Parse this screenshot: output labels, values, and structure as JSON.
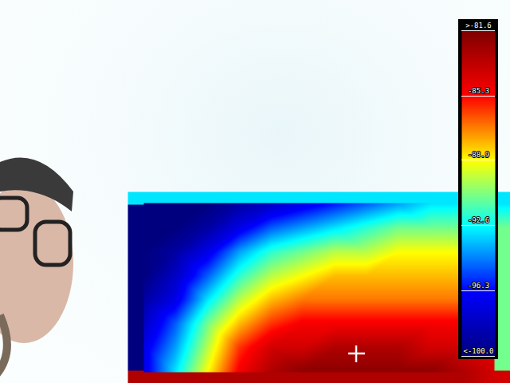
{
  "chart_data": {
    "type": "heatmap",
    "tick_labels": false,
    "cells": [
      [
        -100,
        -100,
        -100,
        -99,
        -98,
        -97,
        -96,
        -95,
        -94,
        -93,
        -93,
        -93
      ],
      [
        -100,
        -100,
        -99,
        -97,
        -95,
        -94,
        -93,
        -92,
        -91,
        -91,
        -91,
        -91
      ],
      [
        -100,
        -99,
        -97,
        -94,
        -92,
        -91,
        -90,
        -90,
        -89,
        -89,
        -89,
        -89
      ],
      [
        -100,
        -98,
        -95,
        -92,
        -90,
        -89,
        -88,
        -88,
        -88,
        -88,
        -88,
        -88
      ],
      [
        -99,
        -97,
        -93,
        -90,
        -88,
        -87,
        -87,
        -87,
        -87,
        -87,
        -87,
        -87
      ],
      [
        -98,
        -95,
        -91,
        -88,
        -86,
        -85,
        -85,
        -85,
        -85,
        -85,
        -85,
        -86
      ],
      [
        -97,
        -94,
        -90,
        -86,
        -84,
        -84,
        -83,
        -83,
        -83,
        -84,
        -84,
        -85
      ],
      [
        -97,
        -93,
        -89,
        -85,
        -83,
        -82,
        -82,
        -82,
        -82,
        -82,
        -83,
        -84
      ]
    ],
    "color_range": [
      -100,
      -81.6
    ],
    "color_ticks": [
      {
        "value": -100,
        "label": "<-100.0"
      },
      -96.3,
      -92.6,
      -88.9,
      -85.3,
      {
        "value": -81.6,
        "label": ">-81.6"
      }
    ]
  }
}
